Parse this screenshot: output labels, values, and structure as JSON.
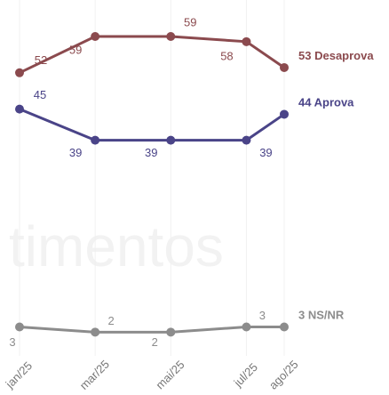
{
  "chart_data": {
    "type": "line",
    "watermark": "timentos",
    "x": [
      "2025-01",
      "2025-03",
      "2025-05",
      "2025-07",
      "2025-08"
    ],
    "xticks": [
      {
        "value": "2025-01",
        "label": "jan/25"
      },
      {
        "value": "2025-03",
        "label": "mar/25"
      },
      {
        "value": "2025-05",
        "label": "mai/25"
      },
      {
        "value": "2025-07",
        "label": "jul/25"
      },
      {
        "value": "2025-08",
        "label": "ago/25"
      }
    ],
    "ylim": [
      0,
      65
    ],
    "series": [
      {
        "name": "Desaprova",
        "color": "#8b4a4e",
        "values": [
          52,
          59,
          59,
          58,
          53
        ]
      },
      {
        "name": "Aprova",
        "color": "#4a4488",
        "values": [
          45,
          39,
          39,
          39,
          44
        ]
      },
      {
        "name": "NS/NR",
        "color": "#8c8c8c",
        "values": [
          3,
          2,
          2,
          3,
          3
        ]
      }
    ]
  }
}
